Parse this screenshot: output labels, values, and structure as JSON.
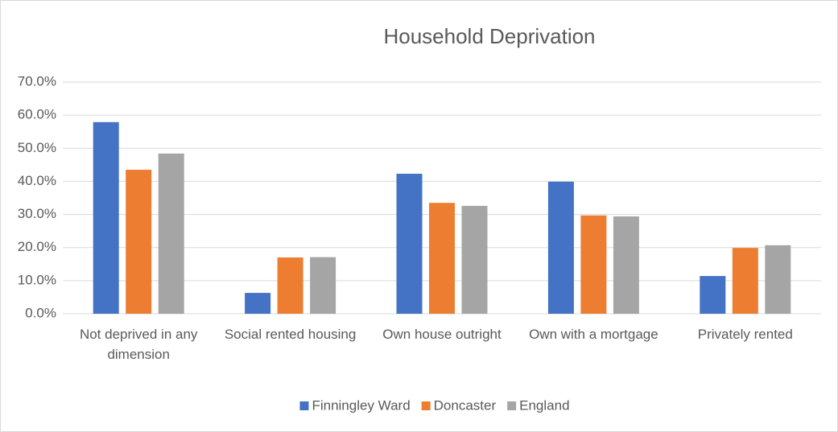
{
  "chart_data": {
    "type": "bar",
    "title": "Household Deprivation",
    "categories": [
      "Not deprived in any dimension",
      "Social rented housing",
      "Own house outright",
      "Own with a mortgage",
      "Privately rented"
    ],
    "series": [
      {
        "name": "Finningley Ward",
        "color": "#4472c4",
        "values": [
          57.9,
          6.3,
          42.3,
          39.9,
          11.4
        ]
      },
      {
        "name": "Doncaster",
        "color": "#ed7d31",
        "values": [
          43.5,
          17.0,
          33.5,
          29.7,
          19.9
        ]
      },
      {
        "name": "England",
        "color": "#a5a5a5",
        "values": [
          48.4,
          17.1,
          32.6,
          29.4,
          20.7
        ]
      }
    ],
    "ylim": [
      0,
      70
    ],
    "yticks": [
      {
        "value": 0,
        "label": "0.0%"
      },
      {
        "value": 10,
        "label": "10.0%"
      },
      {
        "value": 20,
        "label": "20.0%"
      },
      {
        "value": 30,
        "label": "30.0%"
      },
      {
        "value": 40,
        "label": "40.0%"
      },
      {
        "value": 50,
        "label": "50.0%"
      },
      {
        "value": 60,
        "label": "60.0%"
      },
      {
        "value": 70,
        "label": "70.0%"
      }
    ],
    "grid": true,
    "legend": "bottom"
  }
}
